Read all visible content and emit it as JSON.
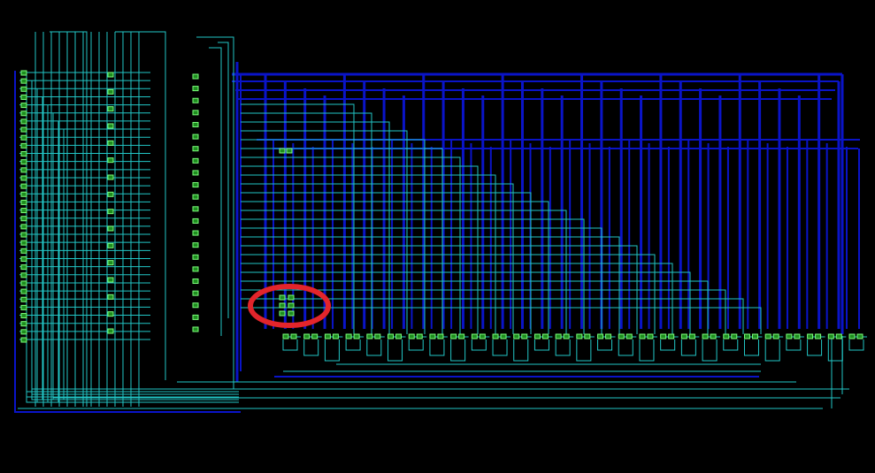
{
  "viewer": {
    "background_color": "#000000",
    "bus_color": "#0a14c8",
    "net_color": "#22c6c6",
    "cell_fill_color": "#1e8c1e",
    "cell_stroke_color": "#7cff7c",
    "highlight_color": "#e3252b"
  },
  "schematic": {
    "input_port_count": 34,
    "gate_column_1_count": 16,
    "gate_column_2_count": 22,
    "upper_register_count": 12,
    "highlighted_register_count": 3,
    "bottom_register_count": 28,
    "vertical_bus_count": 30,
    "has_highlight_marker": true
  }
}
